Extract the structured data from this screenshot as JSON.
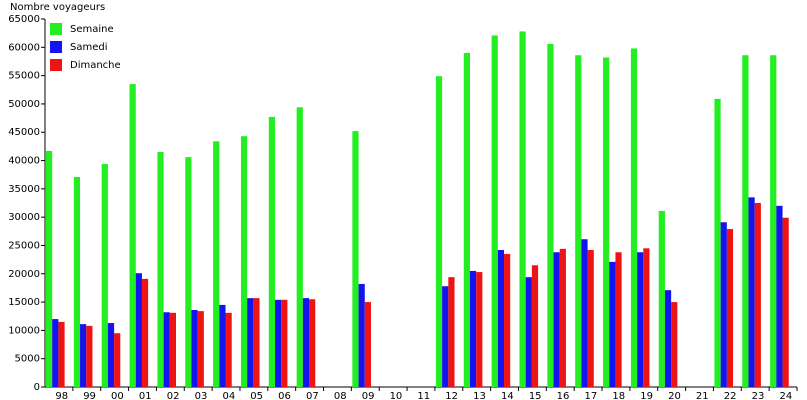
{
  "chart_data": {
    "type": "bar",
    "y_label": "Nombre voyageurs",
    "categories": [
      "98",
      "99",
      "00",
      "01",
      "02",
      "03",
      "04",
      "05",
      "06",
      "07",
      "08",
      "09",
      "10",
      "11",
      "12",
      "13",
      "14",
      "15",
      "16",
      "17",
      "18",
      "19",
      "20",
      "21",
      "22",
      "23",
      "24"
    ],
    "series": [
      {
        "name": "Semaine",
        "color": "#22ee22",
        "values": [
          41700,
          37100,
          39400,
          53500,
          41500,
          40600,
          43400,
          44300,
          47700,
          49400,
          null,
          45200,
          null,
          null,
          54900,
          59000,
          62100,
          62800,
          60600,
          58600,
          58200,
          59800,
          31100,
          null,
          50900,
          58600,
          58600
        ]
      },
      {
        "name": "Samedi",
        "color": "#1414ee",
        "values": [
          12000,
          11100,
          11300,
          20100,
          13200,
          13600,
          14500,
          15700,
          15400,
          15700,
          null,
          18200,
          null,
          null,
          17800,
          20500,
          24200,
          19400,
          23800,
          26100,
          22100,
          23800,
          17100,
          null,
          29100,
          33500,
          32000
        ]
      },
      {
        "name": "Dimanche",
        "color": "#ee1414",
        "values": [
          11500,
          10800,
          9500,
          19100,
          13100,
          13400,
          13100,
          15700,
          15400,
          15500,
          null,
          15000,
          null,
          null,
          19400,
          20300,
          23500,
          21500,
          24400,
          24200,
          23800,
          24500,
          15000,
          null,
          27900,
          32500,
          29900
        ]
      }
    ],
    "ylim": [
      0,
      65000
    ],
    "yticks": [
      0,
      5000,
      10000,
      15000,
      20000,
      25000,
      30000,
      35000,
      40000,
      45000,
      50000,
      55000,
      60000,
      65000
    ],
    "grid": false,
    "legend": "top-left"
  }
}
